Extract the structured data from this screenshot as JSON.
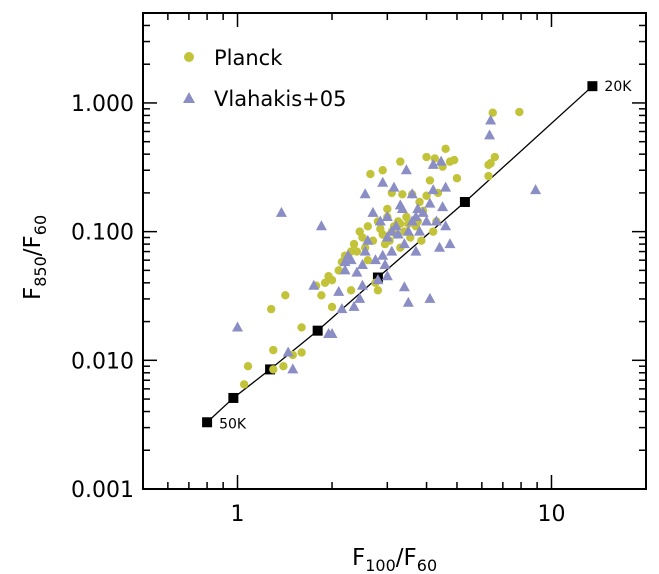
{
  "chart_data": {
    "type": "scatter",
    "title": "",
    "xlabel": {
      "base": "F",
      "sub": "100",
      "sep": "/F",
      "sub2": "60"
    },
    "ylabel": {
      "base": "F",
      "sub": "850",
      "sep": "/F",
      "sub2": "60"
    },
    "xscale": "log",
    "yscale": "log",
    "xlim": [
      0.5,
      20
    ],
    "ylim": [
      0.001,
      5
    ],
    "x_ticks": [
      {
        "value": 1,
        "label": "1"
      },
      {
        "value": 10,
        "label": "10"
      }
    ],
    "y_ticks": [
      {
        "value": 0.001,
        "label": "0.001"
      },
      {
        "value": 0.01,
        "label": "0.010"
      },
      {
        "value": 0.1,
        "label": "0.100"
      },
      {
        "value": 1,
        "label": "1.000"
      }
    ],
    "grid": false,
    "legend_position": "top-left",
    "colors": {
      "planck": "#c3c33a",
      "vlahakis": "#8a8ec4",
      "line": "#000000"
    },
    "series": [
      {
        "name": "Planck",
        "marker": "circle",
        "points": [
          [
            1.05,
            0.0065
          ],
          [
            1.08,
            0.009
          ],
          [
            1.3,
            0.0085
          ],
          [
            1.3,
            0.012
          ],
          [
            1.28,
            0.025
          ],
          [
            1.42,
            0.032
          ],
          [
            1.4,
            0.009
          ],
          [
            1.5,
            0.011
          ],
          [
            1.6,
            0.0115
          ],
          [
            1.6,
            0.018
          ],
          [
            1.78,
            0.038
          ],
          [
            1.85,
            0.032
          ],
          [
            1.9,
            0.04
          ],
          [
            1.95,
            0.045
          ],
          [
            2.0,
            0.042
          ],
          [
            2.0,
            0.026
          ],
          [
            2.1,
            0.05
          ],
          [
            2.15,
            0.058
          ],
          [
            2.2,
            0.065
          ],
          [
            2.25,
            0.06
          ],
          [
            2.3,
            0.035
          ],
          [
            2.3,
            0.07
          ],
          [
            2.35,
            0.08
          ],
          [
            2.4,
            0.07
          ],
          [
            2.45,
            0.1
          ],
          [
            2.5,
            0.09
          ],
          [
            2.55,
            0.075
          ],
          [
            2.6,
            0.11
          ],
          [
            2.6,
            0.06
          ],
          [
            2.7,
            0.085
          ],
          [
            2.75,
            0.04
          ],
          [
            2.8,
            0.035
          ],
          [
            2.8,
            0.12
          ],
          [
            2.85,
            0.105
          ],
          [
            2.9,
            0.095
          ],
          [
            2.95,
            0.08
          ],
          [
            3.0,
            0.13
          ],
          [
            3.0,
            0.15
          ],
          [
            3.05,
            0.085
          ],
          [
            3.1,
            0.1
          ],
          [
            3.15,
            0.11
          ],
          [
            3.2,
            0.095
          ],
          [
            3.25,
            0.12
          ],
          [
            3.3,
            0.115
          ],
          [
            3.3,
            0.075
          ],
          [
            3.35,
            0.195
          ],
          [
            3.4,
            0.1
          ],
          [
            3.45,
            0.13
          ],
          [
            3.5,
            0.115
          ],
          [
            3.55,
            0.09
          ],
          [
            3.6,
            0.195
          ],
          [
            3.7,
            0.11
          ],
          [
            3.75,
            0.12
          ],
          [
            3.8,
            0.17
          ],
          [
            3.85,
            0.085
          ],
          [
            3.9,
            0.145
          ],
          [
            4.0,
            0.19
          ],
          [
            4.0,
            0.38
          ],
          [
            4.1,
            0.25
          ],
          [
            4.2,
            0.1
          ],
          [
            4.25,
            0.37
          ],
          [
            4.3,
            0.12
          ],
          [
            4.35,
            0.2
          ],
          [
            4.5,
            0.32
          ],
          [
            4.6,
            0.44
          ],
          [
            4.75,
            0.35
          ],
          [
            4.9,
            0.36
          ],
          [
            5.0,
            0.26
          ],
          [
            2.65,
            0.28
          ],
          [
            2.9,
            0.3
          ],
          [
            3.1,
            0.2
          ],
          [
            3.3,
            0.35
          ],
          [
            6.3,
            0.27
          ],
          [
            6.3,
            0.33
          ],
          [
            6.5,
            0.84
          ],
          [
            6.6,
            0.38
          ],
          [
            7.9,
            0.85
          ],
          [
            6.4,
            0.34
          ]
        ]
      },
      {
        "name": "Vlahakis+05",
        "marker": "triangle",
        "points": [
          [
            1.0,
            0.018
          ],
          [
            1.38,
            0.14
          ],
          [
            1.45,
            0.0115
          ],
          [
            1.5,
            0.0085
          ],
          [
            1.75,
            0.038
          ],
          [
            1.95,
            0.016
          ],
          [
            2.0,
            0.016
          ],
          [
            2.1,
            0.034
          ],
          [
            2.15,
            0.025
          ],
          [
            2.2,
            0.058
          ],
          [
            2.25,
            0.065
          ],
          [
            2.3,
            0.06
          ],
          [
            2.35,
            0.026
          ],
          [
            2.4,
            0.048
          ],
          [
            2.45,
            0.03
          ],
          [
            2.5,
            0.055
          ],
          [
            2.55,
            0.07
          ],
          [
            2.55,
            0.195
          ],
          [
            2.6,
            0.085
          ],
          [
            2.7,
            0.14
          ],
          [
            2.75,
            0.06
          ],
          [
            2.8,
            0.042
          ],
          [
            2.85,
            0.12
          ],
          [
            2.9,
            0.065
          ],
          [
            2.95,
            0.055
          ],
          [
            3.0,
            0.045
          ],
          [
            3.0,
            0.09
          ],
          [
            3.1,
            0.1
          ],
          [
            3.1,
            0.07
          ],
          [
            3.15,
            0.22
          ],
          [
            3.2,
            0.11
          ],
          [
            3.25,
            0.095
          ],
          [
            3.3,
            0.16
          ],
          [
            3.35,
            0.15
          ],
          [
            3.4,
            0.08
          ],
          [
            3.4,
            0.037
          ],
          [
            3.5,
            0.1
          ],
          [
            3.6,
            0.12
          ],
          [
            3.6,
            0.195
          ],
          [
            3.7,
            0.13
          ],
          [
            3.7,
            0.07
          ],
          [
            3.75,
            0.15
          ],
          [
            3.8,
            0.1
          ],
          [
            3.9,
            0.14
          ],
          [
            4.0,
            0.12
          ],
          [
            4.1,
            0.165
          ],
          [
            4.1,
            0.03
          ],
          [
            4.2,
            0.21
          ],
          [
            4.3,
            0.12
          ],
          [
            4.4,
            0.075
          ],
          [
            4.45,
            0.35
          ],
          [
            4.5,
            0.155
          ],
          [
            4.6,
            0.22
          ],
          [
            4.75,
            0.08
          ],
          [
            2.5,
            0.038
          ],
          [
            2.2,
            0.05
          ],
          [
            1.85,
            0.11
          ],
          [
            3.5,
            0.028
          ],
          [
            6.35,
            0.56
          ],
          [
            6.4,
            0.73
          ],
          [
            8.9,
            0.21
          ],
          [
            3.45,
            0.3
          ],
          [
            4.2,
            0.33
          ],
          [
            4.6,
            0.11
          ],
          [
            3.0,
            0.13
          ],
          [
            2.9,
            0.24
          ]
        ]
      }
    ],
    "model_line": {
      "points": [
        [
          0.8,
          0.0033
        ],
        [
          0.97,
          0.0051
        ],
        [
          1.27,
          0.0085
        ],
        [
          1.8,
          0.017
        ],
        [
          2.8,
          0.044
        ],
        [
          5.3,
          0.17
        ],
        [
          13.5,
          1.35
        ]
      ],
      "annotations": [
        {
          "label": "50K",
          "x": 0.8,
          "y": 0.0033,
          "side": "right-below"
        },
        {
          "label": "20K",
          "x": 13.5,
          "y": 1.35,
          "side": "right"
        }
      ]
    }
  }
}
